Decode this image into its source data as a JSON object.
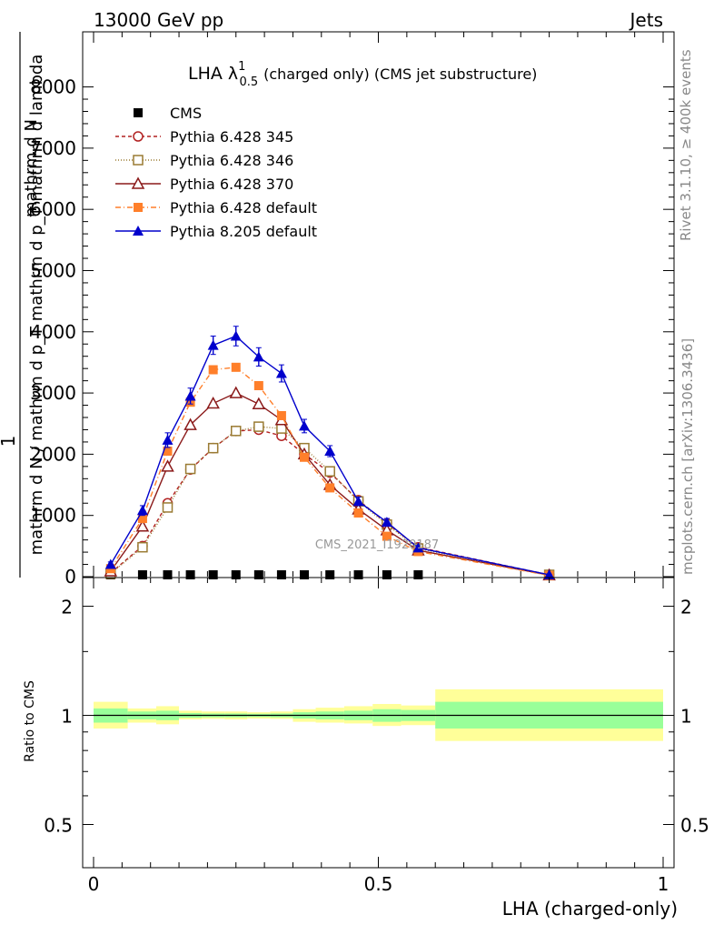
{
  "header": {
    "energy_label": "13000 GeV pp",
    "process_label": "Jets"
  },
  "side_labels": {
    "rivet": "Rivet 3.1.10, ≥ 400k events",
    "mcplots": "mcplots.cern.ch [arXiv:1306.3436]"
  },
  "watermark": "CMS_2021_I1920187",
  "chart_data": [
    {
      "type": "line",
      "title_main": "LHA λ",
      "title_sup": "1",
      "title_sub": "0.5",
      "title_rest": "(charged only) (CMS jet substructure)",
      "ylabel_numer": "1",
      "ylabel_denom": "mathrm d N / mathrm d p_T mathrm d p_T mathrm d lambda",
      "ylabel_line1": "mathrm d",
      "ylabel_line2": "mathrm d N / mathrm d lambda",
      "ylabel_numer_top": "mathrm d N",
      "ylabel_numer_mid": "mathrm d p_T mathrm d lambda",
      "xlim": [
        0,
        1
      ],
      "ylim": [
        0,
        8900
      ],
      "yticks": [
        {
          "v": 0,
          "l": "0"
        },
        {
          "v": 1000,
          "l": "1000"
        },
        {
          "v": 2000,
          "l": "2000"
        },
        {
          "v": 3000,
          "l": "3000"
        },
        {
          "v": 4000,
          "l": "4000"
        },
        {
          "v": 5000,
          "l": "5000"
        },
        {
          "v": 6000,
          "l": "6000"
        },
        {
          "v": 7000,
          "l": "7000"
        },
        {
          "v": 8000,
          "l": "8000"
        }
      ],
      "legend": [
        {
          "name": "CMS",
          "color": "#000000",
          "marker": "square-filled",
          "dash": "none"
        },
        {
          "name": "Pythia 6.428 345",
          "color": "#b22222",
          "marker": "circle-open",
          "dash": "4,3"
        },
        {
          "name": "Pythia 6.428 346",
          "color": "#9a7b33",
          "marker": "square-open",
          "dash": "1,2"
        },
        {
          "name": "Pythia 6.428 370",
          "color": "#8b1a1a",
          "marker": "triangle-open",
          "dash": "none"
        },
        {
          "name": "Pythia 6.428 default",
          "color": "#ff7f2a",
          "marker": "square-filled",
          "dash": "6,3,1,3"
        },
        {
          "name": "Pythia 8.205 default",
          "color": "#0000cc",
          "marker": "triangle-filled",
          "dash": "none"
        }
      ],
      "x": [
        0.03,
        0.086,
        0.13,
        0.17,
        0.21,
        0.25,
        0.29,
        0.33,
        0.37,
        0.415,
        0.465,
        0.515,
        0.57,
        0.8
      ],
      "series": [
        {
          "name": "CMS",
          "values": [
            0,
            0,
            0,
            0,
            0,
            0,
            0,
            0,
            0,
            0,
            0,
            0,
            0,
            null
          ]
        },
        {
          "name": "Pythia 6.428 345",
          "values": [
            60,
            500,
            1200,
            1750,
            2100,
            2380,
            2400,
            2300,
            2000,
            1700,
            1250,
            870,
            480,
            30
          ]
        },
        {
          "name": "Pythia 6.428 346",
          "values": [
            50,
            480,
            1130,
            1760,
            2100,
            2380,
            2450,
            2420,
            2100,
            1720,
            1230,
            850,
            460,
            30
          ]
        },
        {
          "name": "Pythia 6.428 370",
          "values": [
            90,
            820,
            1800,
            2480,
            2830,
            3000,
            2820,
            2560,
            2000,
            1500,
            1100,
            760,
            430,
            25
          ]
        },
        {
          "name": "Pythia 6.428 default",
          "values": [
            130,
            950,
            2050,
            2850,
            3380,
            3420,
            3120,
            2630,
            1950,
            1450,
            1040,
            660,
            410,
            20
          ]
        },
        {
          "name": "Pythia 8.205 default",
          "values": [
            200,
            1080,
            2230,
            2950,
            3780,
            3930,
            3590,
            3320,
            2460,
            2050,
            1230,
            890,
            470,
            30
          ]
        }
      ],
      "errors": [
        40,
        80,
        120,
        130,
        150,
        160,
        150,
        140,
        110,
        90,
        70,
        60,
        40,
        10
      ]
    },
    {
      "type": "area",
      "ylabel": "Ratio to CMS",
      "xlabel": "LHA (charged-only)",
      "xlim": [
        0,
        1
      ],
      "ylim": [
        0.38,
        2.4
      ],
      "scale": "log",
      "yticks": [
        {
          "v": 0.5,
          "l": "0.5"
        },
        {
          "v": 1,
          "l": "1"
        },
        {
          "v": 2,
          "l": "2"
        }
      ],
      "xticks": [
        {
          "v": 0,
          "l": "0"
        },
        {
          "v": 0.5,
          "l": "0.5"
        },
        {
          "v": 1,
          "l": "1"
        }
      ],
      "bands": [
        {
          "x0": 0.0,
          "x1": 0.06,
          "inner": [
            0.955,
            1.045
          ],
          "outer": [
            0.92,
            1.09
          ]
        },
        {
          "x0": 0.06,
          "x1": 0.11,
          "inner": [
            0.975,
            1.025
          ],
          "outer": [
            0.955,
            1.045
          ]
        },
        {
          "x0": 0.11,
          "x1": 0.15,
          "inner": [
            0.97,
            1.03
          ],
          "outer": [
            0.945,
            1.06
          ]
        },
        {
          "x0": 0.15,
          "x1": 0.19,
          "inner": [
            0.985,
            1.015
          ],
          "outer": [
            0.975,
            1.03
          ]
        },
        {
          "x0": 0.19,
          "x1": 0.23,
          "inner": [
            0.988,
            1.012
          ],
          "outer": [
            0.978,
            1.025
          ]
        },
        {
          "x0": 0.23,
          "x1": 0.27,
          "inner": [
            0.988,
            1.012
          ],
          "outer": [
            0.975,
            1.025
          ]
        },
        {
          "x0": 0.27,
          "x1": 0.31,
          "inner": [
            0.99,
            1.01
          ],
          "outer": [
            0.98,
            1.02
          ]
        },
        {
          "x0": 0.31,
          "x1": 0.35,
          "inner": [
            0.988,
            1.012
          ],
          "outer": [
            0.978,
            1.025
          ]
        },
        {
          "x0": 0.35,
          "x1": 0.39,
          "inner": [
            0.98,
            1.02
          ],
          "outer": [
            0.96,
            1.04
          ]
        },
        {
          "x0": 0.39,
          "x1": 0.44,
          "inner": [
            0.975,
            1.025
          ],
          "outer": [
            0.955,
            1.05
          ]
        },
        {
          "x0": 0.44,
          "x1": 0.49,
          "inner": [
            0.97,
            1.03
          ],
          "outer": [
            0.95,
            1.06
          ]
        },
        {
          "x0": 0.49,
          "x1": 0.54,
          "inner": [
            0.96,
            1.04
          ],
          "outer": [
            0.935,
            1.075
          ]
        },
        {
          "x0": 0.54,
          "x1": 0.6,
          "inner": [
            0.965,
            1.035
          ],
          "outer": [
            0.94,
            1.065
          ]
        },
        {
          "x0": 0.6,
          "x1": 1.0,
          "inner": [
            0.92,
            1.09
          ],
          "outer": [
            0.85,
            1.18
          ]
        }
      ]
    }
  ]
}
